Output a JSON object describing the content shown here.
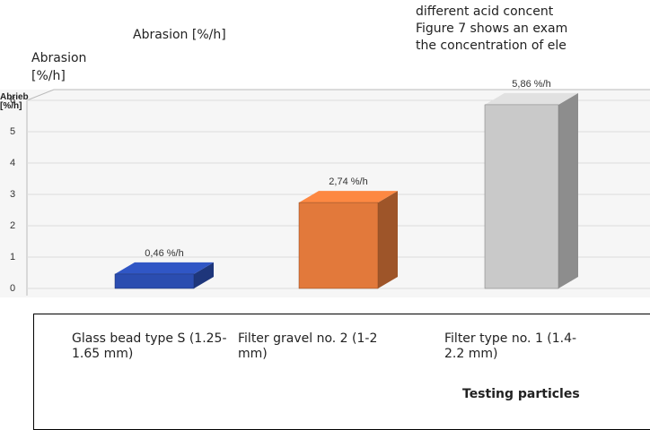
{
  "document": {
    "paragraph_lines": [
      "different acid concent",
      "Figure 7 shows an exam",
      "the concentration of ele"
    ],
    "abrasion_label_top": "Abrasion [%/h]",
    "abrasion_label_left": "Abrasion [%/h]",
    "testing_particles": "Testing particles"
  },
  "chart_data": {
    "type": "bar",
    "y_axis_label": "Abrieb [%/h]",
    "categories": [
      "Glass bead type S (1.25-1.65 mm)",
      "Filter gravel no. 2 (1-2 mm)",
      "Filter type no. 1 (1.4-2.2 mm)"
    ],
    "values": [
      0.46,
      2.74,
      5.86
    ],
    "value_labels": [
      "0,46 %/h",
      "2,74 %/h",
      "5,86 %/h"
    ],
    "colors": [
      "#2b4db0",
      "#e2793b",
      "#c9c9c9"
    ],
    "ylim": [
      0,
      6
    ],
    "yticks": [
      0,
      1,
      2,
      3,
      4,
      5,
      6
    ],
    "grid": true
  }
}
